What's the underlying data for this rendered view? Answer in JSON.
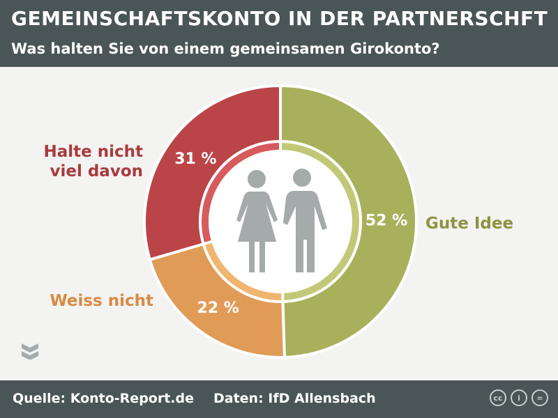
{
  "header": {
    "title": "GEMEINSCHAFTSKONTO IN DER PARTNERSCHFT",
    "subtitle": "Was halten Sie von einem gemeinsamen Girokonto?"
  },
  "footer": {
    "source": "Quelle: Konto-Report.de",
    "data_source": "Daten: IfD Allensbach",
    "license_icons": [
      "cc-icon",
      "by-icon",
      "nd-icon"
    ],
    "license_glyphs": [
      "cc",
      "i",
      "="
    ]
  },
  "chart_data": {
    "type": "pie",
    "variant": "donut",
    "title": "Was halten Sie von einem gemeinsamen Girokonto?",
    "slices": [
      {
        "name": "Gute Idee",
        "value": 52,
        "value_label": "52 %",
        "label": "Gute Idee",
        "color": "#a9b05c",
        "inner_color": "#c3c878",
        "text_color": "#8d9440"
      },
      {
        "name": "Weiss nicht",
        "value": 22,
        "value_label": "22 %",
        "label": "Weiss nicht",
        "color": "#e09b57",
        "inner_color": "#f0b56f",
        "text_color": "#d98a40"
      },
      {
        "name": "Halte nicht viel davon",
        "value": 31,
        "value_label": "31 %",
        "label_lines": [
          "Halte nicht",
          "viel davon"
        ],
        "color": "#bb4448",
        "inner_color": "#d75a5d",
        "text_color": "#a93a3c"
      }
    ]
  },
  "colors": {
    "header_bg": "#4a5557",
    "background": "#f3f3f2",
    "center_icon": "#a5aaab"
  }
}
